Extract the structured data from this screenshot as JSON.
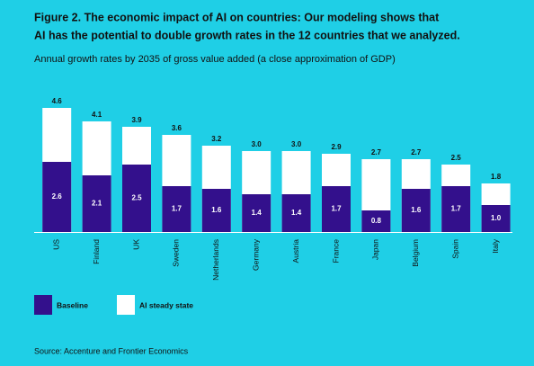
{
  "chart_data": {
    "type": "overlap-bar",
    "title": "Figure 2. The economic impact of AI on countries: Our modeling shows that",
    "title_line2": "AI has the potential to double growth rates in the 12 countries that we analyzed.",
    "subtitle": "Annual growth rates by 2035 of gross value added (a close approximation of GDP)",
    "source": "Source: Accenture and Frontier Economics",
    "categories": [
      "US",
      "Finland",
      "UK",
      "Sweden",
      "Netherlands",
      "Germany",
      "Austria",
      "France",
      "Japan",
      "Belgium",
      "Spain",
      "Italy"
    ],
    "series": [
      {
        "name": "Baseline",
        "color": "#33108c",
        "label_color": "#ffffff",
        "values": [
          2.6,
          2.1,
          2.5,
          1.7,
          1.6,
          1.4,
          1.4,
          1.7,
          0.8,
          1.6,
          1.7,
          1.0
        ],
        "value_labels": [
          "2.6",
          "2.1",
          "2.5",
          "1.7",
          "1.6",
          "1.4",
          "1.4",
          "1.7",
          "0.8",
          "1.6",
          "1.7",
          "1.0"
        ]
      },
      {
        "name": "AI steady state",
        "color": "#ffffff",
        "label_color": "#111111",
        "values": [
          4.6,
          4.1,
          3.9,
          3.6,
          3.2,
          3.0,
          3.0,
          2.9,
          2.7,
          2.7,
          2.5,
          1.8
        ],
        "value_labels": [
          "4.6",
          "4.1",
          "3.9",
          "3.6",
          "3.2",
          "3.0",
          "3.0",
          "2.9",
          "2.7",
          "2.7",
          "2.5",
          "1.8"
        ]
      }
    ]
  }
}
